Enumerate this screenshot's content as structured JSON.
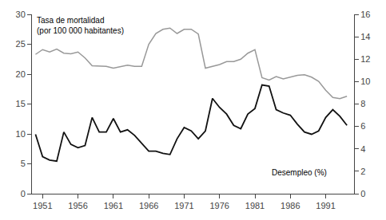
{
  "chart_data": {
    "type": "line",
    "x": [
      1950,
      1951,
      1952,
      1953,
      1954,
      1955,
      1956,
      1957,
      1958,
      1959,
      1960,
      1961,
      1962,
      1963,
      1964,
      1965,
      1966,
      1967,
      1968,
      1969,
      1970,
      1971,
      1972,
      1973,
      1974,
      1975,
      1976,
      1977,
      1978,
      1979,
      1980,
      1981,
      1982,
      1983,
      1984,
      1985,
      1986,
      1987,
      1988,
      1989,
      1990,
      1991,
      1992,
      1993,
      1994
    ],
    "series": [
      {
        "color": "#999999",
        "values": [
          23.3,
          24.1,
          23.7,
          24.2,
          23.5,
          23.4,
          23.7,
          22.7,
          21.4,
          21.4,
          21.3,
          21.0,
          21.3,
          21.5,
          21.3,
          21.3,
          25.0,
          26.8,
          27.5,
          27.7,
          26.8,
          27.5,
          27.5,
          26.7,
          21.0,
          21.3,
          21.6,
          22.1,
          22.1,
          22.5,
          23.5,
          24.1,
          19.4,
          19.0,
          19.6,
          19.2,
          19.5,
          19.8,
          19.9,
          19.5,
          18.8,
          17.3,
          16.1,
          15.9,
          16.3
        ]
      },
      {
        "color": "#111111",
        "axis": "y2",
        "values": [
          5.3,
          3.3,
          3.0,
          2.9,
          5.5,
          4.4,
          4.1,
          4.3,
          6.8,
          5.5,
          5.5,
          6.7,
          5.5,
          5.7,
          5.2,
          4.5,
          3.8,
          3.8,
          3.6,
          3.5,
          4.9,
          5.9,
          5.6,
          4.9,
          5.6,
          8.5,
          7.7,
          7.1,
          6.1,
          5.8,
          7.1,
          7.6,
          9.7,
          9.6,
          7.5,
          7.2,
          7.0,
          6.2,
          5.5,
          5.3,
          5.6,
          6.8,
          7.5,
          6.9,
          6.1
        ]
      }
    ],
    "annotations": [
      "Tasa de mortalidad\n(por 100 000 habitantes)",
      "Desempleo (%)"
    ],
    "xlim": [
      1949.5,
      1995.0
    ],
    "xticks": [
      1951,
      1956,
      1961,
      1966,
      1971,
      1976,
      1981,
      1986,
      1991
    ],
    "ylim": [
      0,
      30
    ],
    "yticks": [
      0,
      5,
      10,
      15,
      20,
      25,
      30
    ],
    "y2lim": [
      0,
      16
    ],
    "y2ticks": [
      0,
      2,
      4,
      6,
      8,
      10,
      12,
      14,
      16
    ],
    "grid": false
  }
}
